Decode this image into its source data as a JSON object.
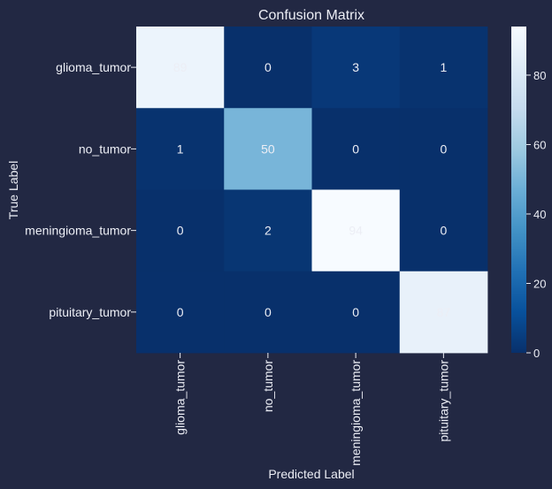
{
  "chart_data": {
    "type": "heatmap",
    "title": "Confusion Matrix",
    "xlabel": "Predicted Label",
    "ylabel": "True Label",
    "x_categories": [
      "glioma_tumor",
      "no_tumor",
      "meningioma_tumor",
      "pituitary_tumor"
    ],
    "y_categories": [
      "glioma_tumor",
      "no_tumor",
      "meningioma_tumor",
      "pituitary_tumor"
    ],
    "values": [
      [
        89,
        0,
        3,
        1
      ],
      [
        1,
        50,
        0,
        0
      ],
      [
        0,
        2,
        94,
        0
      ],
      [
        0,
        0,
        0,
        87
      ]
    ],
    "colorbar": {
      "min": 0,
      "max": 94,
      "ticks": [
        0,
        20,
        40,
        60,
        80
      ],
      "colormap": "Blues",
      "low_color": "#08306b",
      "high_color": "#f7fbff"
    },
    "annotation_text_color": "#eceef5",
    "background_color": "#222843"
  }
}
